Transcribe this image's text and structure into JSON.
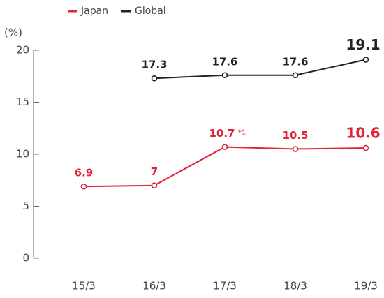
{
  "chart_data": {
    "type": "line",
    "y_label": "(%)",
    "categories": [
      "15/3",
      "16/3",
      "17/3",
      "18/3",
      "19/3"
    ],
    "series": [
      {
        "name": "Japan",
        "color": "#e0243a",
        "values": [
          6.9,
          7.0,
          10.7,
          10.5,
          10.6
        ]
      },
      {
        "name": "Global",
        "color": "#222222",
        "values": [
          null,
          17.3,
          17.6,
          17.6,
          19.1
        ]
      }
    ],
    "annotations": [
      "*1"
    ],
    "ylim": [
      0,
      20
    ],
    "yticks": [
      0,
      5,
      10,
      15,
      20
    ]
  }
}
